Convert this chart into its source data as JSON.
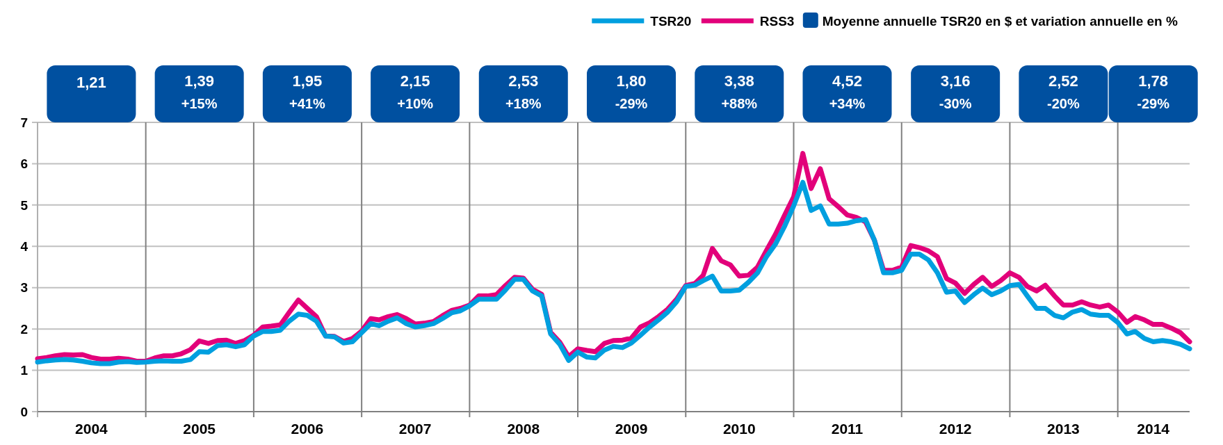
{
  "chart_data": {
    "type": "line",
    "x": [
      "2004-01",
      "2004-02",
      "2004-03",
      "2004-04",
      "2004-05",
      "2004-06",
      "2004-07",
      "2004-08",
      "2004-09",
      "2004-10",
      "2004-11",
      "2004-12",
      "2005-01",
      "2005-02",
      "2005-03",
      "2005-04",
      "2005-05",
      "2005-06",
      "2005-07",
      "2005-08",
      "2005-09",
      "2005-10",
      "2005-11",
      "2005-12",
      "2006-01",
      "2006-02",
      "2006-03",
      "2006-04",
      "2006-05",
      "2006-06",
      "2006-07",
      "2006-08",
      "2006-09",
      "2006-10",
      "2006-11",
      "2006-12",
      "2007-01",
      "2007-02",
      "2007-03",
      "2007-04",
      "2007-05",
      "2007-06",
      "2007-07",
      "2007-08",
      "2007-09",
      "2007-10",
      "2007-11",
      "2007-12",
      "2008-01",
      "2008-02",
      "2008-03",
      "2008-04",
      "2008-05",
      "2008-06",
      "2008-07",
      "2008-08",
      "2008-09",
      "2008-10",
      "2008-11",
      "2008-12",
      "2009-01",
      "2009-02",
      "2009-03",
      "2009-04",
      "2009-05",
      "2009-06",
      "2009-07",
      "2009-08",
      "2009-09",
      "2009-10",
      "2009-11",
      "2009-12",
      "2010-01",
      "2010-02",
      "2010-03",
      "2010-04",
      "2010-05",
      "2010-06",
      "2010-07",
      "2010-08",
      "2010-09",
      "2010-10",
      "2010-11",
      "2010-12",
      "2011-01",
      "2011-02",
      "2011-03",
      "2011-04",
      "2011-05",
      "2011-06",
      "2011-07",
      "2011-08",
      "2011-09",
      "2011-10",
      "2011-11",
      "2011-12",
      "2012-01",
      "2012-02",
      "2012-03",
      "2012-04",
      "2012-05",
      "2012-06",
      "2012-07",
      "2012-08",
      "2012-09",
      "2012-10",
      "2012-11",
      "2012-12",
      "2013-01",
      "2013-02",
      "2013-03",
      "2013-04",
      "2013-05",
      "2013-06",
      "2013-07",
      "2013-08",
      "2013-09",
      "2013-10",
      "2013-11",
      "2013-12",
      "2014-01",
      "2014-02",
      "2014-03",
      "2014-04",
      "2014-05",
      "2014-06",
      "2014-07",
      "2014-08",
      "2014-09"
    ],
    "series": [
      {
        "name": "RSS3",
        "color": "#e2007a",
        "values": [
          1.28,
          1.31,
          1.35,
          1.38,
          1.37,
          1.38,
          1.31,
          1.27,
          1.27,
          1.29,
          1.27,
          1.22,
          1.22,
          1.3,
          1.35,
          1.35,
          1.4,
          1.5,
          1.71,
          1.65,
          1.72,
          1.73,
          1.65,
          1.72,
          1.85,
          2.05,
          2.07,
          2.1,
          2.4,
          2.7,
          2.5,
          2.3,
          1.83,
          1.82,
          1.7,
          1.77,
          1.95,
          2.25,
          2.22,
          2.3,
          2.35,
          2.25,
          2.12,
          2.14,
          2.18,
          2.32,
          2.45,
          2.5,
          2.58,
          2.8,
          2.8,
          2.83,
          3.05,
          3.25,
          3.23,
          2.96,
          2.84,
          1.92,
          1.68,
          1.33,
          1.52,
          1.48,
          1.45,
          1.65,
          1.72,
          1.73,
          1.78,
          2.05,
          2.15,
          2.3,
          2.48,
          2.72,
          3.05,
          3.1,
          3.3,
          3.95,
          3.65,
          3.55,
          3.28,
          3.3,
          3.5,
          3.9,
          4.3,
          4.75,
          5.2,
          6.25,
          5.4,
          5.88,
          5.15,
          4.96,
          4.76,
          4.7,
          4.59,
          4.15,
          3.42,
          3.42,
          3.5,
          4.02,
          3.97,
          3.89,
          3.75,
          3.22,
          3.11,
          2.86,
          3.08,
          3.25,
          3.03,
          3.17,
          3.36,
          3.25,
          3.03,
          2.92,
          3.06,
          2.8,
          2.58,
          2.58,
          2.66,
          2.58,
          2.53,
          2.58,
          2.41,
          2.16,
          2.3,
          2.22,
          2.11,
          2.11,
          2.02,
          1.91,
          1.69
        ]
      },
      {
        "name": "TSR20",
        "color": "#009fdf",
        "values": [
          1.2,
          1.23,
          1.25,
          1.26,
          1.25,
          1.22,
          1.18,
          1.16,
          1.16,
          1.2,
          1.21,
          1.19,
          1.2,
          1.22,
          1.23,
          1.22,
          1.22,
          1.26,
          1.45,
          1.44,
          1.6,
          1.62,
          1.57,
          1.62,
          1.83,
          1.94,
          1.94,
          1.97,
          2.19,
          2.36,
          2.33,
          2.19,
          1.83,
          1.81,
          1.66,
          1.69,
          1.91,
          2.13,
          2.08,
          2.19,
          2.27,
          2.13,
          2.05,
          2.08,
          2.13,
          2.25,
          2.39,
          2.44,
          2.56,
          2.72,
          2.72,
          2.72,
          2.94,
          3.2,
          3.2,
          2.92,
          2.8,
          1.88,
          1.63,
          1.24,
          1.44,
          1.32,
          1.3,
          1.49,
          1.58,
          1.55,
          1.66,
          1.85,
          2.05,
          2.22,
          2.41,
          2.66,
          3.03,
          3.06,
          3.17,
          3.28,
          2.92,
          2.92,
          2.94,
          3.13,
          3.36,
          3.75,
          4.06,
          4.48,
          4.98,
          5.55,
          4.87,
          4.98,
          4.54,
          4.54,
          4.56,
          4.62,
          4.65,
          4.15,
          3.36,
          3.36,
          3.42,
          3.81,
          3.81,
          3.67,
          3.36,
          2.89,
          2.92,
          2.64,
          2.83,
          2.99,
          2.83,
          2.92,
          3.05,
          3.08,
          2.8,
          2.5,
          2.5,
          2.33,
          2.27,
          2.41,
          2.47,
          2.36,
          2.33,
          2.33,
          2.16,
          1.88,
          1.94,
          1.77,
          1.69,
          1.72,
          1.69,
          1.63,
          1.52
        ]
      }
    ],
    "xlim": [
      "2004-01",
      "2014-09"
    ],
    "xticks": [
      {
        "value": "2004-07",
        "label": "2004"
      },
      {
        "value": "2005-07",
        "label": "2005"
      },
      {
        "value": "2006-07",
        "label": "2006"
      },
      {
        "value": "2007-07",
        "label": "2007"
      },
      {
        "value": "2008-07",
        "label": "2008"
      },
      {
        "value": "2009-07",
        "label": "2009"
      },
      {
        "value": "2010-07",
        "label": "2010"
      },
      {
        "value": "2011-07",
        "label": "2011"
      },
      {
        "value": "2012-07",
        "label": "2012"
      },
      {
        "value": "2013-07",
        "label": "2013"
      },
      {
        "value": "2014-05",
        "label": "2014"
      }
    ],
    "ylim": [
      0,
      7
    ],
    "yticks": [
      0,
      1,
      2,
      3,
      4,
      5,
      6,
      7
    ],
    "grid": "y",
    "legend": "top right",
    "marker": "none",
    "line_style": "solid",
    "ref_lines": [
      {
        "axis": "x",
        "value": "2005-01",
        "label": null
      },
      {
        "axis": "x",
        "value": "2006-01",
        "label": null
      },
      {
        "axis": "x",
        "value": "2007-01",
        "label": null
      },
      {
        "axis": "x",
        "value": "2008-01",
        "label": null
      },
      {
        "axis": "x",
        "value": "2009-01",
        "label": null
      },
      {
        "axis": "x",
        "value": "2010-01",
        "label": null
      },
      {
        "axis": "x",
        "value": "2011-01",
        "label": null
      },
      {
        "axis": "x",
        "value": "2012-01",
        "label": null
      },
      {
        "axis": "x",
        "value": "2013-01",
        "label": null
      },
      {
        "axis": "x",
        "value": "2014-01",
        "label": null
      }
    ],
    "annotations": [
      "Moyenne annuelle TSR20 en $ et variation annuelle en %",
      "1,21",
      "1,39\n+15%",
      "1,95\n+41%",
      "2,15\n+10%",
      "2,53\n+18%",
      "1,80\n-29%",
      "3,38\n+88%",
      "4,52\n+34%",
      "3,16\n-30%",
      "2,52\n-20%",
      "1,78\n-29%"
    ]
  }
}
